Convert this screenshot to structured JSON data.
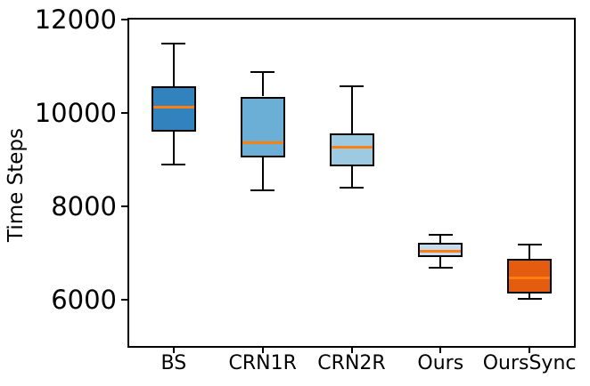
{
  "chart_data": {
    "type": "boxplot",
    "title": "",
    "xlabel": "",
    "ylabel": "Time Steps",
    "ylim": [
      5000,
      12000
    ],
    "yticks": [
      6000,
      8000,
      10000,
      12000
    ],
    "ytick_labels": [
      "6000",
      "8000",
      "10000",
      "12000"
    ],
    "grid": false,
    "categories": [
      "BS",
      "CRN1R",
      "CRN2R",
      "Ours",
      "OursSync"
    ],
    "series": [
      {
        "name": "BS",
        "whislo": 8900,
        "q1": 9600,
        "med": 10130,
        "q3": 10560,
        "whishi": 11490,
        "fill": "#3182bd"
      },
      {
        "name": "CRN1R",
        "whislo": 8340,
        "q1": 9050,
        "med": 9350,
        "q3": 10350,
        "whishi": 10870,
        "fill": "#6baed6"
      },
      {
        "name": "CRN2R",
        "whislo": 8400,
        "q1": 8860,
        "med": 9270,
        "q3": 9560,
        "whishi": 10570,
        "fill": "#9ecae1"
      },
      {
        "name": "Ours",
        "whislo": 6680,
        "q1": 6900,
        "med": 7030,
        "q3": 7210,
        "whishi": 7380,
        "fill": "#c6dbef"
      },
      {
        "name": "OursSync",
        "whislo": 6010,
        "q1": 6130,
        "med": 6460,
        "q3": 6860,
        "whishi": 7170,
        "fill": "#e45c0f"
      }
    ],
    "colors": {
      "median": "#ff7f0e",
      "edge": "#000000",
      "text": "#000000",
      "background": "#ffffff"
    }
  }
}
